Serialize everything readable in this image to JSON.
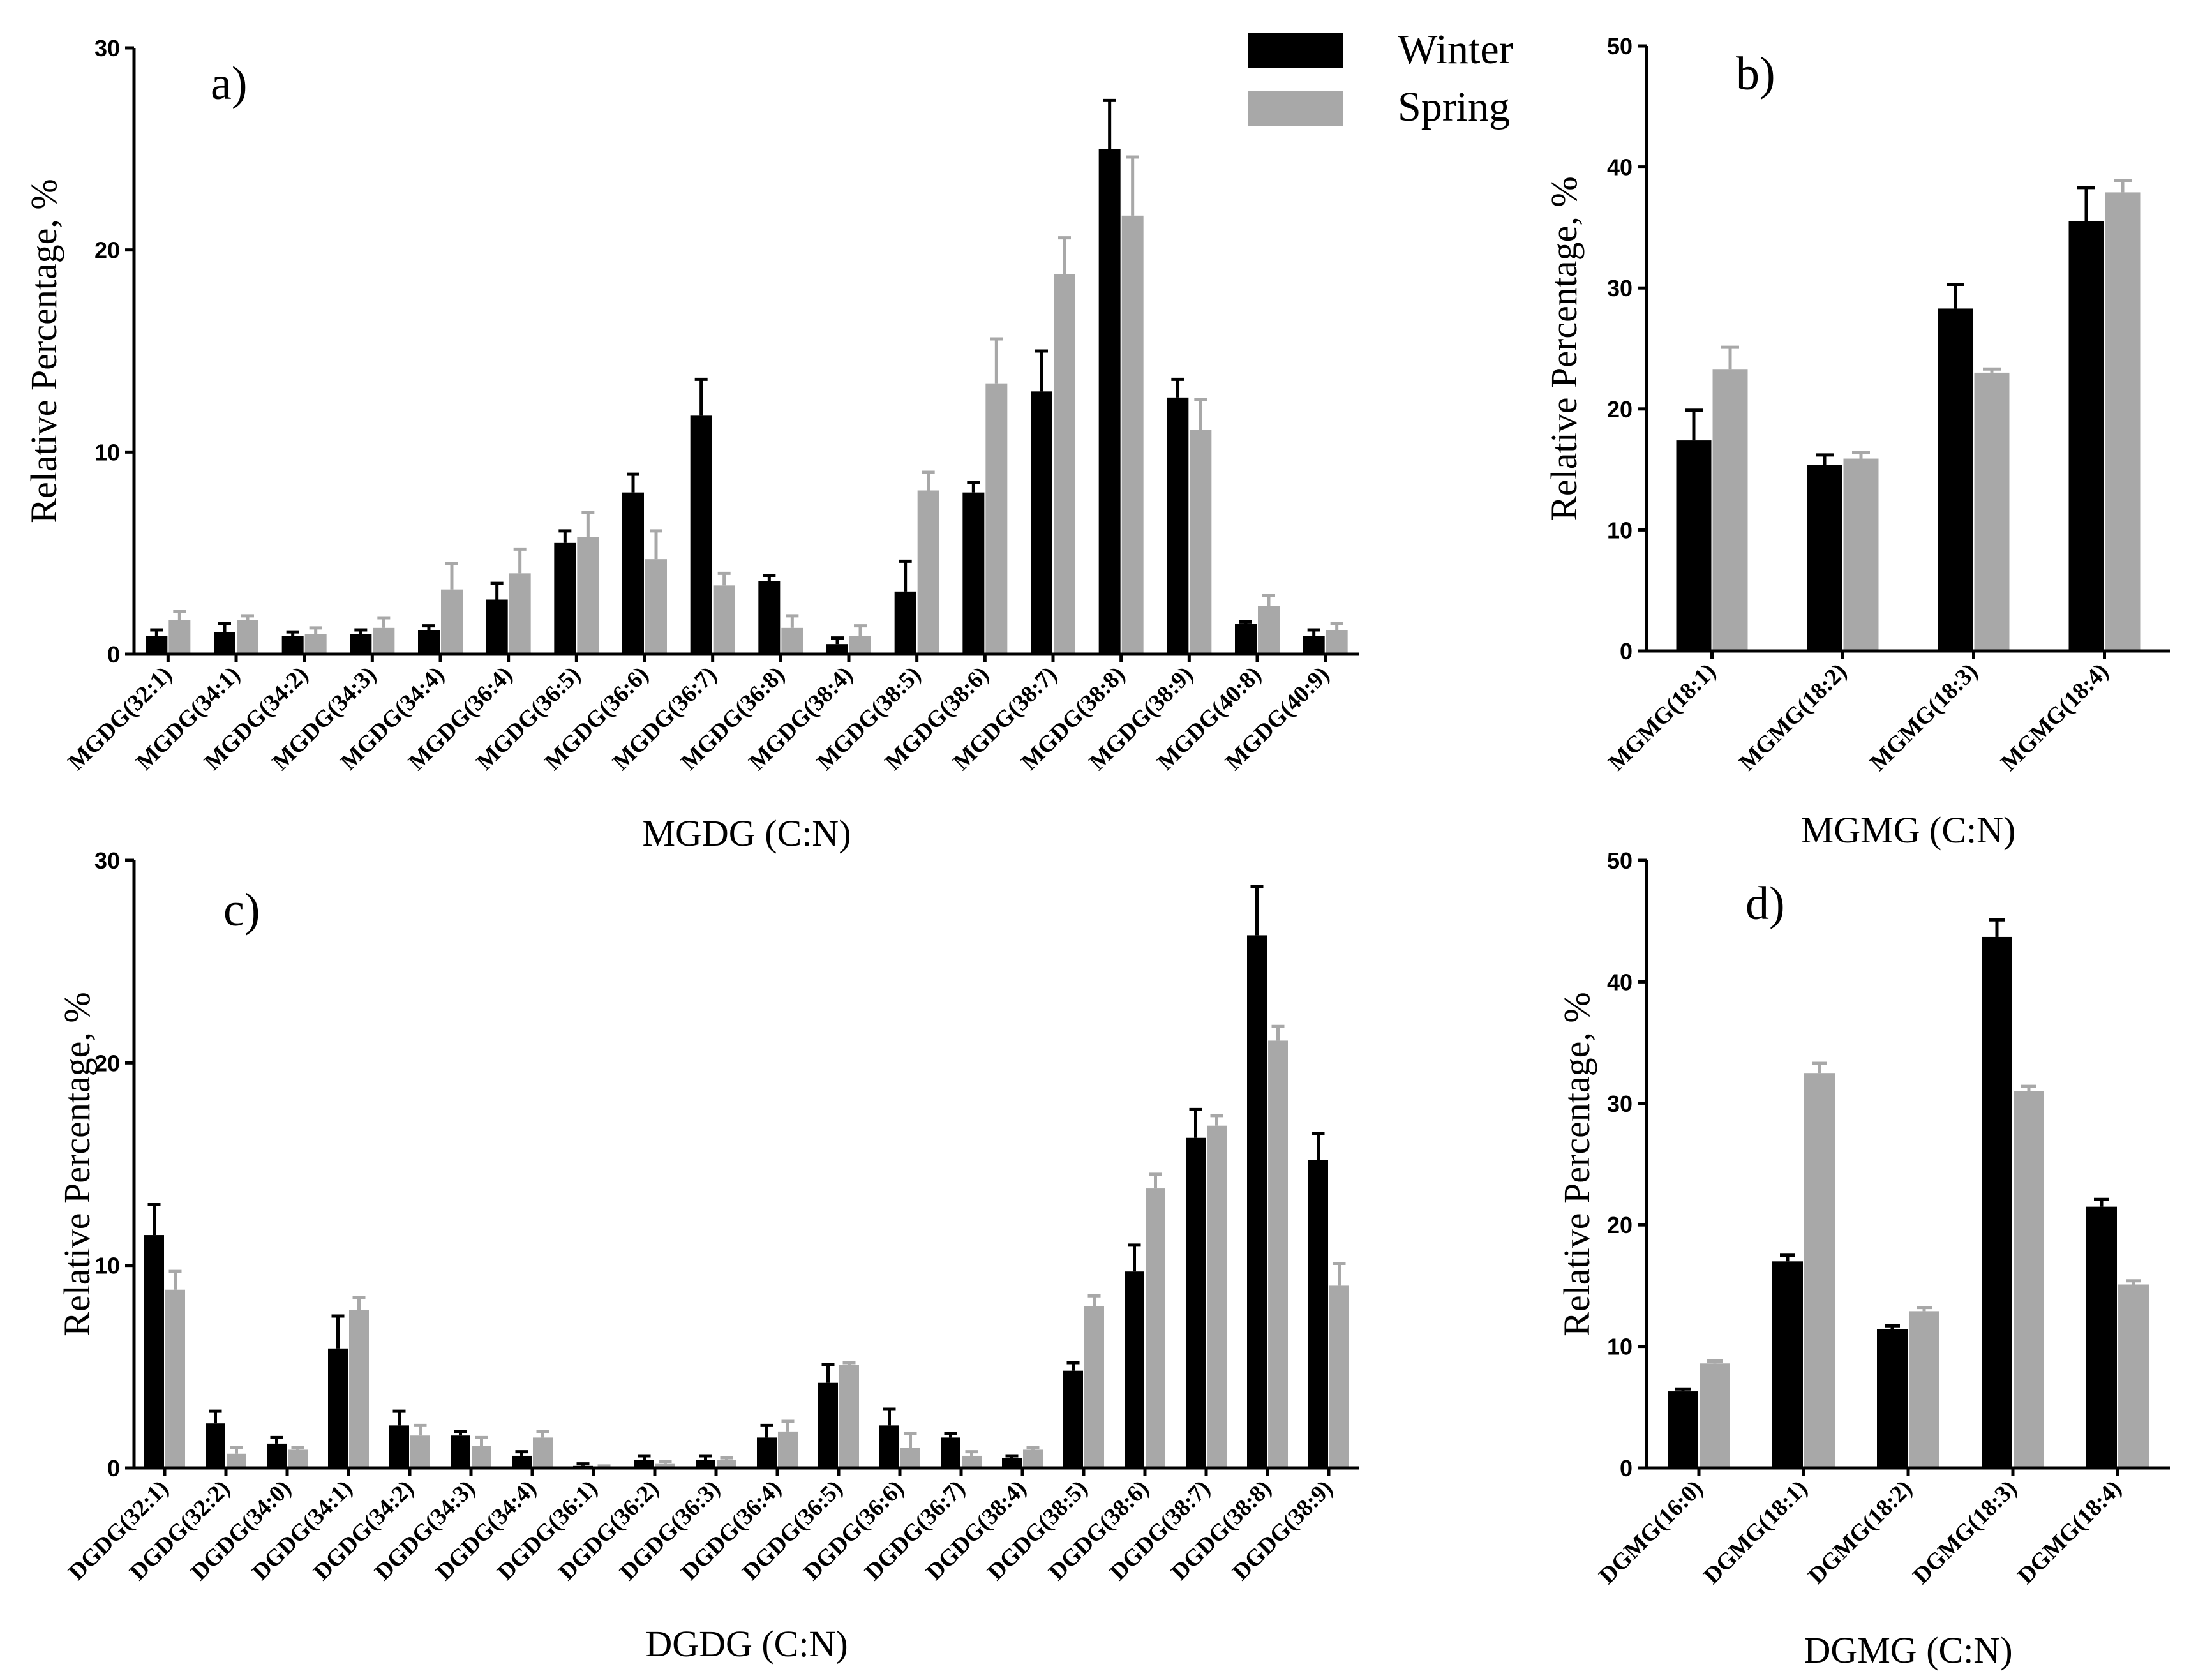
{
  "legend": {
    "entries": [
      {
        "name": "Winter",
        "color": "#000000"
      },
      {
        "name": "Spring",
        "color": "#a8a8a8"
      }
    ]
  },
  "chart_data": [
    {
      "id": "a",
      "type": "bar",
      "panel_label": "a)",
      "xlabel": "MGDG (C:N)",
      "ylabel": "Relative Percentage, %",
      "ylim": [
        0,
        30
      ],
      "yticks": [
        "0",
        "10",
        "20",
        "30"
      ],
      "categories": [
        "MGDG(32:1)",
        "MGDG(34:1)",
        "MGDG(34:2)",
        "MGDG(34:3)",
        "MGDG(34:4)",
        "MGDG(36:4)",
        "MGDG(36:5)",
        "MGDG(36:6)",
        "MGDG(36:7)",
        "MGDG(36:8)",
        "MGDG(38:4)",
        "MGDG(38:5)",
        "MGDG(38:6)",
        "MGDG(38:7)",
        "MGDG(38:8)",
        "MGDG(38:9)",
        "MGDG(40:8)",
        "MGDG(40:9)"
      ],
      "series": [
        {
          "name": "Winter",
          "values": [
            0.9,
            1.1,
            0.9,
            1.0,
            1.2,
            2.7,
            5.5,
            8.0,
            11.8,
            3.6,
            0.5,
            3.1,
            8.0,
            13.0,
            25.0,
            12.7,
            1.5,
            0.9
          ],
          "errors": [
            0.3,
            0.4,
            0.2,
            0.2,
            0.2,
            0.8,
            0.6,
            0.9,
            1.8,
            0.3,
            0.3,
            1.5,
            0.5,
            2.0,
            2.4,
            0.9,
            0.1,
            0.3
          ]
        },
        {
          "name": "Spring",
          "values": [
            1.7,
            1.7,
            1.0,
            1.3,
            3.2,
            4.0,
            5.8,
            4.7,
            3.4,
            1.3,
            0.9,
            8.1,
            13.4,
            18.8,
            21.7,
            11.1,
            2.4,
            1.2
          ],
          "errors": [
            0.4,
            0.2,
            0.3,
            0.5,
            1.3,
            1.2,
            1.2,
            1.4,
            0.6,
            0.6,
            0.5,
            0.9,
            2.2,
            1.8,
            2.9,
            1.5,
            0.5,
            0.3
          ]
        }
      ]
    },
    {
      "id": "b",
      "type": "bar",
      "panel_label": "b)",
      "xlabel": "MGMG (C:N)",
      "ylabel": "Relative Percentage, %",
      "ylim": [
        0,
        50
      ],
      "yticks": [
        "0",
        "10",
        "20",
        "30",
        "40",
        "50"
      ],
      "categories": [
        "MGMG(18:1)",
        "MGMG(18:2)",
        "MGMG(18:3)",
        "MGMG(18:4)"
      ],
      "series": [
        {
          "name": "Winter",
          "values": [
            17.4,
            15.4,
            28.3,
            35.5
          ],
          "errors": [
            2.5,
            0.8,
            2.0,
            2.8
          ]
        },
        {
          "name": "Spring",
          "values": [
            23.3,
            15.9,
            23.0,
            37.9
          ],
          "errors": [
            1.8,
            0.5,
            0.3,
            1.0
          ]
        }
      ]
    },
    {
      "id": "c",
      "type": "bar",
      "panel_label": "c)",
      "xlabel": "DGDG (C:N)",
      "ylabel": "Relative Percentage, %",
      "ylim": [
        0,
        30
      ],
      "yticks": [
        "0",
        "10",
        "20",
        "30"
      ],
      "categories": [
        "DGDG(32:1)",
        "DGDG(32:2)",
        "DGDG(34:0)",
        "DGDG(34:1)",
        "DGDG(34:2)",
        "DGDG(34:3)",
        "DGDG(34:4)",
        "DGDG(36:1)",
        "DGDG(36:2)",
        "DGDG(36:3)",
        "DGDG(36:4)",
        "DGDG(36:5)",
        "DGDG(36:6)",
        "DGDG(36:7)",
        "DGDG(38:4)",
        "DGDG(38:5)",
        "DGDG(38:6)",
        "DGDG(38:7)",
        "DGDG(38:8)",
        "DGDG(38:9)"
      ],
      "series": [
        {
          "name": "Winter",
          "values": [
            11.5,
            2.2,
            1.2,
            5.9,
            2.1,
            1.6,
            0.6,
            0.1,
            0.4,
            0.4,
            1.5,
            4.2,
            2.1,
            1.5,
            0.5,
            4.8,
            9.7,
            16.3,
            26.3,
            15.2
          ],
          "errors": [
            1.5,
            0.6,
            0.3,
            1.6,
            0.7,
            0.2,
            0.2,
            0.1,
            0.2,
            0.2,
            0.6,
            0.9,
            0.8,
            0.2,
            0.1,
            0.4,
            1.3,
            1.4,
            2.4,
            1.3
          ]
        },
        {
          "name": "Spring",
          "values": [
            8.8,
            0.7,
            0.9,
            7.8,
            1.6,
            1.1,
            1.5,
            0.05,
            0.2,
            0.4,
            1.8,
            5.1,
            1.0,
            0.6,
            0.9,
            8.0,
            13.8,
            16.9,
            21.1,
            9.0
          ],
          "errors": [
            0.9,
            0.3,
            0.1,
            0.6,
            0.5,
            0.4,
            0.3,
            0.05,
            0.1,
            0.1,
            0.5,
            0.1,
            0.7,
            0.2,
            0.1,
            0.5,
            0.7,
            0.5,
            0.7,
            1.1
          ]
        }
      ]
    },
    {
      "id": "d",
      "type": "bar",
      "panel_label": "d)",
      "xlabel": "DGMG (C:N)",
      "ylabel": "Relative Percentage, %",
      "ylim": [
        0,
        50
      ],
      "yticks": [
        "0",
        "10",
        "20",
        "30",
        "40",
        "50"
      ],
      "categories": [
        "DGMG(16:0)",
        "DGMG(18:1)",
        "DGMG(18:2)",
        "DGMG(18:3)",
        "DGMG(18:4)"
      ],
      "series": [
        {
          "name": "Winter",
          "values": [
            6.3,
            17.0,
            11.4,
            43.7,
            21.5
          ],
          "errors": [
            0.2,
            0.5,
            0.3,
            1.4,
            0.6
          ]
        },
        {
          "name": "Spring",
          "values": [
            8.6,
            32.5,
            12.9,
            31.0,
            15.1
          ],
          "errors": [
            0.2,
            0.8,
            0.3,
            0.4,
            0.3
          ]
        }
      ]
    }
  ]
}
